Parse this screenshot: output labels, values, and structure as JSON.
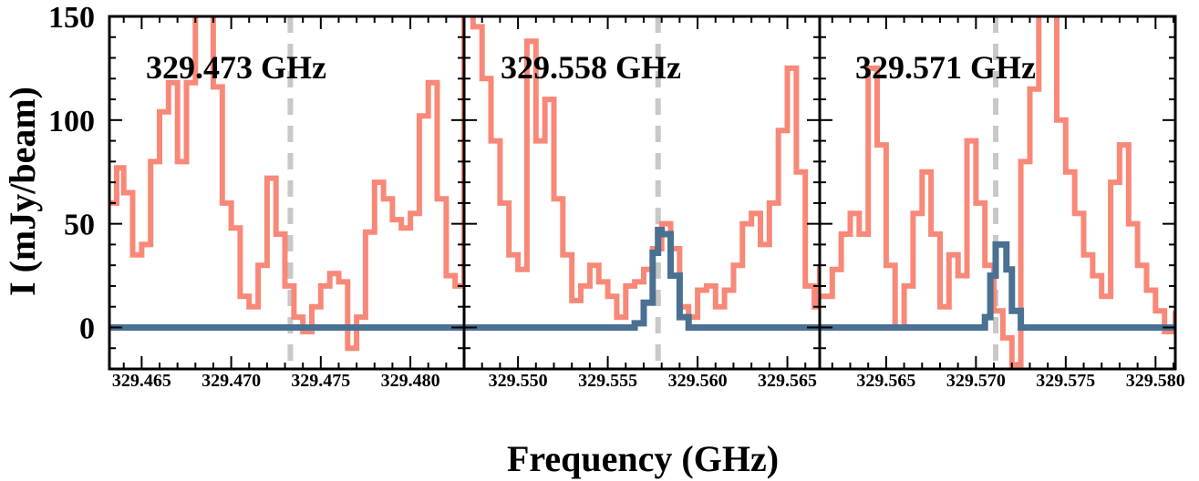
{
  "chart_data": {
    "type": "line",
    "ylabel": "I (mJy/beam)",
    "xlabel": "Frequency (GHz)",
    "ylim": [
      -20,
      150
    ],
    "yticks": [
      0,
      50,
      100,
      150
    ],
    "grid": false,
    "colors": {
      "observed": "#F88878",
      "model": "#4A7092",
      "marker": "#C8C8C8"
    },
    "panels": [
      {
        "label": "329.473 GHz",
        "xlim": [
          329.4632,
          329.483
        ],
        "xticks": [
          "329.465",
          "329.470",
          "329.475",
          "329.480"
        ],
        "marker_x": 329.4733,
        "series": [
          {
            "role": "observed",
            "x": [
              329.4632,
              329.4636,
              329.464,
              329.4645,
              329.465,
              329.4655,
              329.466,
              329.4665,
              329.467,
              329.4675,
              329.468,
              329.4685,
              329.469,
              329.4695,
              329.47,
              329.4705,
              329.471,
              329.4715,
              329.472,
              329.4725,
              329.473,
              329.4735,
              329.474,
              329.4745,
              329.475,
              329.4755,
              329.476,
              329.4765,
              329.477,
              329.4775,
              329.478,
              329.4785,
              329.479,
              329.4795,
              329.48,
              329.4805,
              329.481,
              329.4815,
              329.482,
              329.4825,
              329.483
            ],
            "y": [
              60,
              77,
              65,
              35,
              40,
              80,
              104,
              118,
              80,
              118,
              155,
              158,
              116,
              60,
              48,
              15,
              10,
              30,
              72,
              45,
              20,
              5,
              -2,
              10,
              20,
              26,
              22,
              -10,
              5,
              46,
              70,
              62,
              52,
              48,
              55,
              102,
              118,
              62,
              25,
              20,
              150
            ]
          },
          {
            "role": "model",
            "x": [
              329.4632,
              329.483
            ],
            "y": [
              0,
              0
            ]
          }
        ]
      },
      {
        "label": "329.558 GHz",
        "xlim": [
          329.547,
          329.5668
        ],
        "xticks": [
          "329.550",
          "329.555",
          "329.560",
          "329.565"
        ],
        "marker_x": 329.5578,
        "series": [
          {
            "role": "observed",
            "x": [
              329.547,
              329.5475,
              329.548,
              329.5485,
              329.549,
              329.5495,
              329.55,
              329.5505,
              329.551,
              329.5515,
              329.552,
              329.5525,
              329.553,
              329.5535,
              329.554,
              329.5545,
              329.555,
              329.5555,
              329.556,
              329.5565,
              329.557,
              329.5575,
              329.558,
              329.5585,
              329.559,
              329.5595,
              329.56,
              329.5605,
              329.561,
              329.5615,
              329.562,
              329.5625,
              329.563,
              329.5635,
              329.564,
              329.5645,
              329.565,
              329.5655,
              329.566,
              329.5665,
              329.5668
            ],
            "y": [
              155,
              145,
              120,
              90,
              60,
              35,
              28,
              138,
              90,
              110,
              62,
              35,
              13,
              20,
              30,
              22,
              15,
              5,
              20,
              22,
              28,
              38,
              50,
              38,
              10,
              5,
              18,
              20,
              10,
              18,
              30,
              50,
              55,
              40,
              60,
              95,
              125,
              75,
              20,
              10,
              30
            ]
          },
          {
            "role": "model",
            "x": [
              329.547,
              329.556,
              329.5565,
              329.557,
              329.5575,
              329.5578,
              329.558,
              329.5585,
              329.559,
              329.5595,
              329.5668
            ],
            "y": [
              0,
              0,
              2,
              12,
              36,
              47,
              45,
              25,
              5,
              0,
              0
            ]
          }
        ]
      },
      {
        "label": "329.571 GHz",
        "xlim": [
          329.5613,
          329.5811
        ],
        "xticks": [
          "329.565",
          "329.570",
          "329.575",
          "329.580"
        ],
        "marker_x": 329.5711,
        "series": [
          {
            "role": "observed",
            "x": [
              329.5613,
              329.562,
              329.5625,
              329.563,
              329.5635,
              329.564,
              329.5645,
              329.565,
              329.5655,
              329.566,
              329.5665,
              329.567,
              329.5675,
              329.568,
              329.5685,
              329.569,
              329.5695,
              329.57,
              329.5705,
              329.571,
              329.5715,
              329.572,
              329.5725,
              329.573,
              329.5735,
              329.574,
              329.5745,
              329.575,
              329.5755,
              329.576,
              329.5765,
              329.577,
              329.5775,
              329.578,
              329.5785,
              329.579,
              329.5795,
              329.58,
              329.5805,
              329.5811
            ],
            "y": [
              15,
              28,
              45,
              55,
              45,
              125,
              88,
              30,
              0,
              20,
              55,
              75,
              45,
              10,
              35,
              25,
              90,
              60,
              30,
              8,
              -5,
              -18,
              80,
              115,
              160,
              155,
              100,
              75,
              55,
              35,
              25,
              15,
              70,
              88,
              50,
              30,
              18,
              8,
              -2,
              8
            ]
          },
          {
            "role": "model",
            "x": [
              329.5613,
              329.57,
              329.5705,
              329.5708,
              329.5711,
              329.5714,
              329.5717,
              329.572,
              329.5725,
              329.5811
            ],
            "y": [
              0,
              0,
              5,
              25,
              40,
              40,
              28,
              8,
              0,
              0
            ]
          }
        ]
      }
    ]
  }
}
